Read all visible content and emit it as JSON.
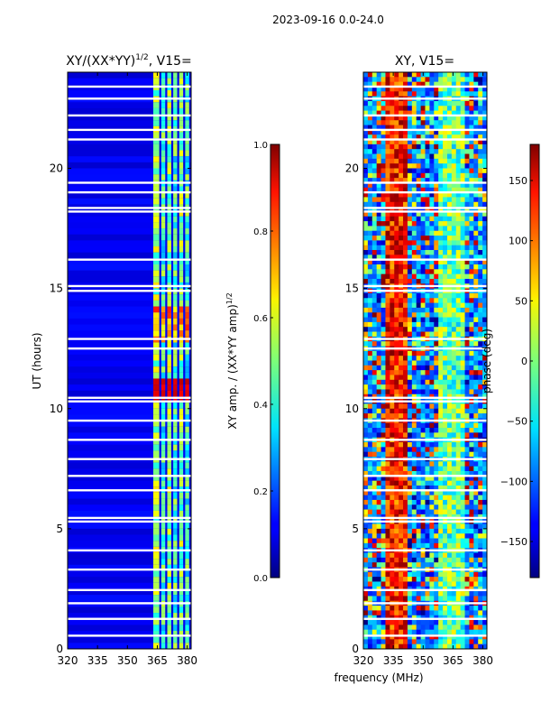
{
  "figure_title": "2023-09-16 0.0-24.0",
  "chart_data": [
    {
      "type": "heatmap",
      "title_main": "XY/(XX*YY)",
      "title_sup": "1/2",
      "title_tail": ", V15=",
      "xlabel": "",
      "ylabel": "UT (hours)",
      "xlim": [
        320,
        382
      ],
      "ylim": [
        0,
        24
      ],
      "xticks": [
        320,
        335,
        350,
        365,
        380
      ],
      "yticks": [
        0,
        5,
        10,
        15,
        20
      ],
      "colorbar": {
        "label_main": "XY amp. / (XX*YY amp)",
        "label_sup": "1/2",
        "range": [
          0.0,
          1.0
        ],
        "ticks": [
          "0.0",
          "0.2",
          "0.4",
          "0.6",
          "0.8",
          "1.0"
        ],
        "tick_values": [
          0.0,
          0.2,
          0.4,
          0.6,
          0.8,
          1.0
        ]
      }
    },
    {
      "type": "heatmap",
      "title": "XY, V15=",
      "xlabel": "frequency (MHz)",
      "ylabel": "",
      "xlim": [
        320,
        382
      ],
      "ylim": [
        0,
        24
      ],
      "xticks": [
        320,
        335,
        350,
        365,
        380
      ],
      "yticks": [
        0,
        5,
        10,
        15,
        20
      ],
      "colorbar": {
        "label": "phase (deg)",
        "range": [
          -180,
          180
        ],
        "ticks": [
          "150",
          "100",
          "50",
          "0",
          "−50",
          "−100",
          "−150"
        ],
        "tick_values": [
          150,
          100,
          50,
          0,
          -50,
          -100,
          -150
        ]
      }
    }
  ],
  "gap_hours": [
    0.55,
    1.25,
    1.9,
    2.45,
    3.3,
    4.1,
    5.3,
    5.45,
    6.6,
    7.2,
    7.9,
    8.7,
    9.5,
    10.3,
    10.45,
    12.5,
    12.9,
    14.9,
    15.1,
    16.2,
    18.2,
    18.35,
    19.0,
    19.4,
    21.2,
    21.6,
    22.2,
    22.9,
    23.4
  ]
}
